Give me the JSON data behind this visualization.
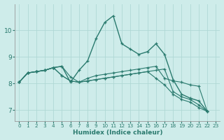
{
  "xlabel": "Humidex (Indice chaleur)",
  "bg_color": "#ceecea",
  "grid_color": "#afd8d5",
  "line_color": "#2a7a6e",
  "xlim": [
    -0.5,
    23.5
  ],
  "ylim": [
    6.6,
    11.0
  ],
  "yticks": [
    7,
    8,
    9,
    10
  ],
  "xticks": [
    0,
    1,
    2,
    3,
    4,
    5,
    6,
    7,
    8,
    9,
    10,
    11,
    12,
    13,
    14,
    15,
    16,
    17,
    18,
    19,
    20,
    21,
    22,
    23
  ],
  "series": [
    {
      "x": [
        0,
        1,
        2,
        3,
        4,
        5,
        6,
        7,
        8,
        9,
        10,
        11,
        12,
        13,
        14,
        15,
        16,
        17,
        18,
        19,
        20,
        21,
        22
      ],
      "y": [
        8.05,
        8.4,
        8.45,
        8.5,
        8.6,
        8.65,
        8.05,
        8.5,
        8.85,
        9.7,
        10.3,
        10.55,
        9.5,
        9.3,
        9.1,
        9.2,
        9.5,
        9.1,
        8.15,
        7.6,
        7.45,
        7.35,
        6.95
      ]
    },
    {
      "x": [
        0,
        1,
        2,
        3,
        4,
        5,
        6,
        7,
        8,
        9,
        10,
        11,
        12,
        13,
        14,
        15,
        16,
        17,
        18,
        19,
        20,
        21,
        22
      ],
      "y": [
        8.05,
        8.4,
        8.45,
        8.5,
        8.6,
        8.65,
        8.25,
        8.05,
        8.2,
        8.3,
        8.35,
        8.4,
        8.45,
        8.5,
        8.55,
        8.6,
        8.65,
        8.2,
        8.1,
        8.05,
        7.95,
        7.9,
        6.95
      ]
    },
    {
      "x": [
        0,
        1,
        2,
        3,
        4,
        5,
        6,
        7,
        8,
        9,
        10,
        11,
        12,
        13,
        14,
        15,
        16,
        17,
        18,
        19,
        20,
        21,
        22
      ],
      "y": [
        8.05,
        8.4,
        8.45,
        8.5,
        8.6,
        8.3,
        8.1,
        8.05,
        8.1,
        8.15,
        8.2,
        8.25,
        8.3,
        8.35,
        8.4,
        8.45,
        8.5,
        8.55,
        7.7,
        7.5,
        7.4,
        7.2,
        6.95
      ]
    },
    {
      "x": [
        0,
        1,
        2,
        3,
        4,
        5,
        6,
        7,
        8,
        9,
        10,
        11,
        12,
        13,
        14,
        15,
        16,
        17,
        18,
        19,
        20,
        21,
        22
      ],
      "y": [
        8.05,
        8.4,
        8.45,
        8.5,
        8.6,
        8.3,
        8.1,
        8.05,
        8.1,
        8.15,
        8.2,
        8.25,
        8.3,
        8.35,
        8.4,
        8.45,
        8.2,
        7.95,
        7.6,
        7.4,
        7.3,
        7.1,
        6.95
      ]
    }
  ]
}
